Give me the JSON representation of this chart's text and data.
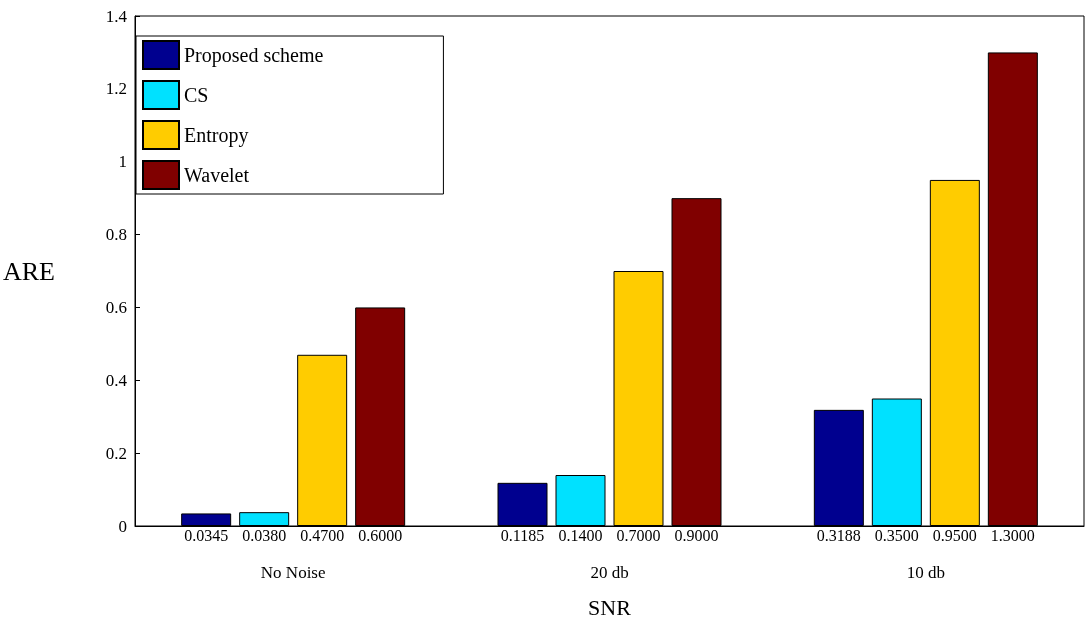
{
  "chart_data": {
    "type": "bar",
    "xlabel": "SNR",
    "ylabel": "ARE",
    "categories": [
      "No Noise",
      "20 db",
      "10 db"
    ],
    "series": [
      {
        "name": "Proposed scheme",
        "color": "#00008f",
        "values": [
          0.0345,
          0.1185,
          0.3188
        ],
        "value_labels": [
          "0.0345",
          "0.1185",
          "0.3188"
        ]
      },
      {
        "name": "CS",
        "color": "#00e1ff",
        "values": [
          0.038,
          0.14,
          0.35
        ],
        "value_labels": [
          "0.0380",
          "0.1400",
          "0.3500"
        ]
      },
      {
        "name": "Entropy",
        "color": "#ffcc00",
        "values": [
          0.47,
          0.7,
          0.95
        ],
        "value_labels": [
          "0.4700",
          "0.7000",
          "0.9500"
        ]
      },
      {
        "name": "Wavelet",
        "color": "#800000",
        "values": [
          0.6,
          0.9,
          1.3
        ],
        "value_labels": [
          "0.6000",
          "0.9000",
          "1.3000"
        ]
      }
    ],
    "ylim": [
      0,
      1.4
    ],
    "yticks": [
      0,
      0.2,
      0.4,
      0.6,
      0.8,
      1,
      1.2,
      1.4
    ],
    "legend": "top left",
    "grid": false
  }
}
